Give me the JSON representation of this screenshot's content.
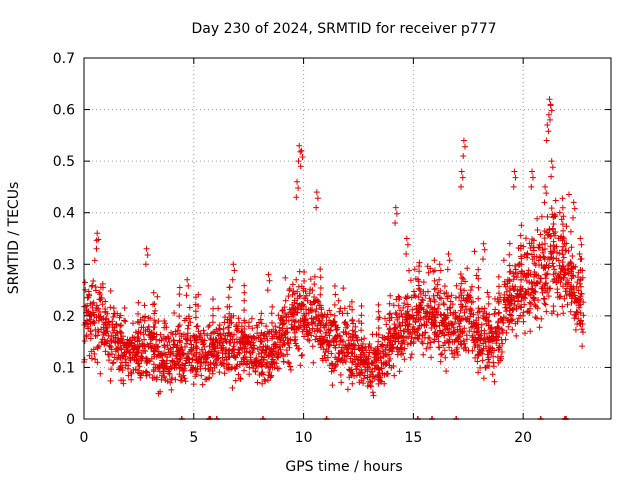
{
  "chart_data": {
    "type": "scatter",
    "title": "Day 230 of 2024, SRMTID for receiver p777",
    "xlabel": "GPS time / hours",
    "ylabel": "SRMTID / TECUs",
    "xlim": [
      0,
      24
    ],
    "ylim": [
      0,
      0.7
    ],
    "xticks": [
      0,
      5,
      10,
      15,
      20
    ],
    "yticks": [
      0,
      0.1,
      0.2,
      0.3,
      0.4,
      0.5,
      0.6,
      0.7
    ],
    "grid": true,
    "marker": "plus",
    "color": "#e00000",
    "trend_hourly": {
      "x": [
        0,
        0.5,
        1,
        1.5,
        2,
        2.5,
        3,
        3.5,
        4,
        4.5,
        5,
        5.5,
        6,
        6.5,
        7,
        7.5,
        8,
        8.5,
        9,
        9.5,
        10,
        10.5,
        11,
        11.5,
        12,
        12.5,
        13,
        13.5,
        14,
        14.5,
        15,
        15.5,
        16,
        16.5,
        17,
        17.5,
        18,
        18.5,
        19,
        19.5,
        20,
        20.5,
        21,
        21.5,
        22,
        22.5
      ],
      "y": [
        0.19,
        0.2,
        0.17,
        0.15,
        0.13,
        0.13,
        0.14,
        0.12,
        0.12,
        0.13,
        0.14,
        0.12,
        0.13,
        0.14,
        0.14,
        0.13,
        0.13,
        0.12,
        0.16,
        0.19,
        0.2,
        0.19,
        0.17,
        0.14,
        0.14,
        0.12,
        0.1,
        0.11,
        0.15,
        0.18,
        0.19,
        0.2,
        0.19,
        0.17,
        0.18,
        0.21,
        0.16,
        0.14,
        0.19,
        0.24,
        0.26,
        0.27,
        0.3,
        0.31,
        0.29,
        0.23
      ]
    },
    "peaks": [
      {
        "x": 0.6,
        "y": 0.36
      },
      {
        "x": 2.85,
        "y": 0.33
      },
      {
        "x": 4.7,
        "y": 0.27
      },
      {
        "x": 6.8,
        "y": 0.3
      },
      {
        "x": 8.4,
        "y": 0.28
      },
      {
        "x": 9.8,
        "y": 0.53
      },
      {
        "x": 9.9,
        "y": 0.52
      },
      {
        "x": 10.6,
        "y": 0.44
      },
      {
        "x": 9.7,
        "y": 0.46
      },
      {
        "x": 14.2,
        "y": 0.41
      },
      {
        "x": 14.7,
        "y": 0.35
      },
      {
        "x": 16.2,
        "y": 0.3
      },
      {
        "x": 16.6,
        "y": 0.32
      },
      {
        "x": 17.3,
        "y": 0.54
      },
      {
        "x": 17.2,
        "y": 0.48
      },
      {
        "x": 18.2,
        "y": 0.34
      },
      {
        "x": 19.6,
        "y": 0.48
      },
      {
        "x": 20.4,
        "y": 0.48
      },
      {
        "x": 21.2,
        "y": 0.62
      },
      {
        "x": 21.25,
        "y": 0.61
      },
      {
        "x": 21.1,
        "y": 0.57
      },
      {
        "x": 21.3,
        "y": 0.5
      },
      {
        "x": 21.0,
        "y": 0.45
      },
      {
        "x": 22.3,
        "y": 0.42
      },
      {
        "x": 22.6,
        "y": 0.35
      }
    ],
    "zero_markers_x": [
      4.45,
      5.7,
      5.75,
      6.05,
      8.15,
      11.05,
      15.2,
      15.85,
      16.95,
      20.8,
      21.9,
      21.95
    ]
  }
}
